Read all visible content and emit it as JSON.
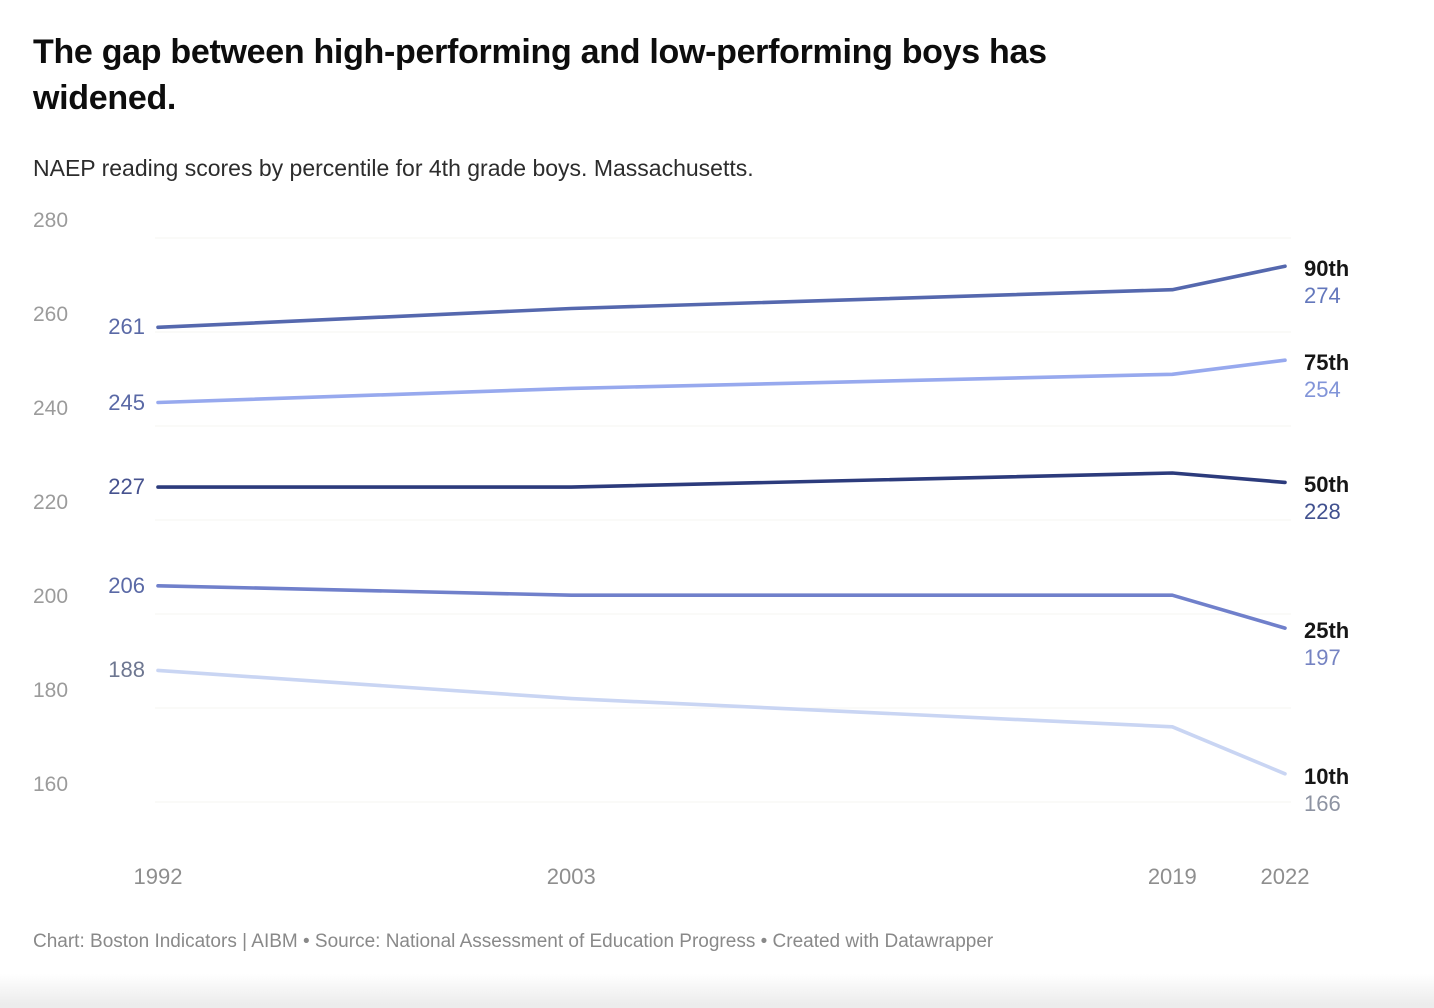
{
  "title": "The gap between high-performing and low-performing boys has widened.",
  "subtitle": "NAEP reading scores by percentile for 4th grade boys. Massachusetts.",
  "footer": "Chart: Boston Indicators | AIBM • Source: National Assessment of Education Progress • Created with Datawrapper",
  "chart_data": {
    "type": "line",
    "title": "The gap between high-performing and low-performing boys has widened.",
    "subtitle": "NAEP reading scores by percentile for 4th grade boys. Massachusetts.",
    "x": [
      1992,
      2003,
      2019,
      2022
    ],
    "x_tick_labels": [
      "1992",
      "2003",
      "2019",
      "2022"
    ],
    "y_ticks": [
      280,
      260,
      240,
      220,
      200,
      180,
      160
    ],
    "ylim": [
      152,
      284
    ],
    "grid": "very-faint-horizontal-gridlines",
    "legend_position": "direct-labels-at-line-ends",
    "series": [
      {
        "name": "90th",
        "values": [
          261,
          265,
          269,
          274
        ],
        "color": "#5568ae",
        "start_label": "261",
        "end_label": "274",
        "start_label_color": "#5a69a6",
        "end_label_color": "#6377bc"
      },
      {
        "name": "75th",
        "values": [
          245,
          248,
          251,
          254
        ],
        "color": "#97a9ee",
        "start_label": "245",
        "end_label": "254",
        "start_label_color": "#5a69a6",
        "end_label_color": "#8194d8"
      },
      {
        "name": "50th",
        "values": [
          227,
          227,
          230,
          228
        ],
        "color": "#2c3b7c",
        "start_label": "227",
        "end_label": "228",
        "start_label_color": "#46528f",
        "end_label_color": "#41518f"
      },
      {
        "name": "25th",
        "values": [
          206,
          204,
          204,
          197
        ],
        "color": "#7080cb",
        "start_label": "206",
        "end_label": "197",
        "start_label_color": "#5a69a6",
        "end_label_color": "#7583c2"
      },
      {
        "name": "10th",
        "values": [
          188,
          182,
          176,
          166
        ],
        "color": "#c9d5f3",
        "start_label": "188",
        "end_label": "166",
        "start_label_color": "#6e7791",
        "end_label_color": "#8d93a2"
      }
    ],
    "percentile_name_color": "#161616",
    "y_tick_color": "#9b9b9b",
    "x_tick_color": "#8e8e8e",
    "line_width": 3.6
  }
}
